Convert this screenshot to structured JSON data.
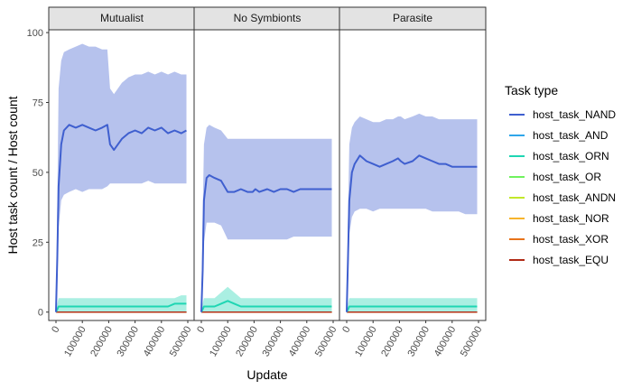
{
  "chart_data": {
    "type": "line",
    "xlabel": "Update",
    "ylabel": "Host task count / Host count",
    "xlim": [
      0,
      500000
    ],
    "ylim": [
      -3,
      101
    ],
    "x_ticks": [
      0,
      100000,
      200000,
      300000,
      400000,
      500000
    ],
    "x_tick_labels": [
      "0",
      "100000",
      "200000",
      "300000",
      "400000",
      "500000"
    ],
    "y_ticks": [
      0,
      25,
      50,
      75,
      100
    ],
    "y_tick_labels": [
      "0",
      "25",
      "50",
      "75",
      "100"
    ],
    "grid": false,
    "legend": {
      "title": "Task type",
      "placement": "right",
      "entries": [
        {
          "name": "host_task_NAND",
          "color": "#3f5fcf"
        },
        {
          "name": "host_task_AND",
          "color": "#2fa6ea"
        },
        {
          "name": "host_task_ORN",
          "color": "#1fd6b3"
        },
        {
          "name": "host_task_OR",
          "color": "#6ff25e"
        },
        {
          "name": "host_task_ANDN",
          "color": "#c2e82a"
        },
        {
          "name": "host_task_NOR",
          "color": "#f7b42c"
        },
        {
          "name": "host_task_XOR",
          "color": "#e8731a"
        },
        {
          "name": "host_task_EQU",
          "color": "#b02a15"
        }
      ]
    },
    "x": [
      0,
      5000,
      10000,
      20000,
      30000,
      50000,
      75000,
      100000,
      125000,
      150000,
      175000,
      195000,
      205000,
      220000,
      250000,
      275000,
      300000,
      325000,
      350000,
      375000,
      400000,
      425000,
      450000,
      475000,
      495000
    ],
    "panels": [
      {
        "strip": "Mutualist",
        "series": [
          {
            "name": "host_task_NAND",
            "values": [
              0,
              20,
              45,
              60,
              65,
              67,
              66,
              67,
              66,
              65,
              66,
              67,
              60,
              58,
              62,
              64,
              65,
              64,
              66,
              65,
              66,
              64,
              65,
              64,
              65
            ],
            "lower": [
              0,
              10,
              30,
              40,
              42,
              43,
              44,
              43,
              44,
              44,
              44,
              45,
              46,
              46,
              46,
              46,
              46,
              46,
              47,
              46,
              46,
              46,
              46,
              46,
              46
            ],
            "upper": [
              0,
              40,
              80,
              90,
              93,
              94,
              95,
              96,
              95,
              95,
              94,
              94,
              80,
              78,
              82,
              84,
              85,
              85,
              86,
              85,
              86,
              85,
              86,
              85,
              85
            ]
          },
          {
            "name": "host_task_ORN",
            "values": [
              0,
              1,
              2,
              2,
              2,
              2,
              2,
              2,
              2,
              2,
              2,
              2,
              2,
              2,
              2,
              2,
              2,
              2,
              2,
              2,
              2,
              2,
              3,
              3,
              3
            ],
            "lower": [
              0,
              0,
              0,
              0,
              0,
              0,
              0,
              0,
              0,
              0,
              0,
              0,
              0,
              0,
              0,
              0,
              0,
              0,
              0,
              0,
              0,
              0,
              0,
              0,
              0
            ],
            "upper": [
              0,
              3,
              5,
              5,
              5,
              5,
              5,
              5,
              5,
              5,
              5,
              5,
              5,
              5,
              5,
              5,
              5,
              5,
              5,
              5,
              5,
              5,
              5,
              6,
              6
            ]
          }
        ]
      },
      {
        "strip": "No Symbionts",
        "series": [
          {
            "name": "host_task_NAND",
            "values": [
              0,
              15,
              40,
              48,
              49,
              48,
              47,
              43,
              43,
              44,
              43,
              43,
              44,
              43,
              44,
              43,
              44,
              44,
              43,
              44,
              44,
              44,
              44,
              44,
              44
            ],
            "lower": [
              0,
              8,
              25,
              32,
              32,
              32,
              31,
              26,
              26,
              26,
              26,
              26,
              26,
              26,
              26,
              26,
              26,
              26,
              27,
              27,
              27,
              27,
              27,
              27,
              27
            ],
            "upper": [
              0,
              35,
              60,
              66,
              67,
              66,
              65,
              62,
              62,
              62,
              62,
              62,
              62,
              62,
              62,
              62,
              62,
              62,
              62,
              62,
              62,
              62,
              62,
              62,
              62
            ]
          },
          {
            "name": "host_task_ORN",
            "values": [
              0,
              1,
              2,
              2,
              2,
              2,
              3,
              4,
              3,
              2,
              2,
              2,
              2,
              2,
              2,
              2,
              2,
              2,
              2,
              2,
              2,
              2,
              2,
              2,
              2
            ],
            "lower": [
              0,
              0,
              0,
              0,
              0,
              0,
              0,
              0,
              0,
              0,
              0,
              0,
              0,
              0,
              0,
              0,
              0,
              0,
              0,
              0,
              0,
              0,
              0,
              0,
              0
            ],
            "upper": [
              0,
              3,
              5,
              5,
              5,
              5,
              7,
              9,
              7,
              5,
              5,
              5,
              5,
              5,
              5,
              5,
              5,
              5,
              5,
              5,
              5,
              5,
              5,
              5,
              5
            ]
          }
        ]
      },
      {
        "strip": "Parasite",
        "series": [
          {
            "name": "host_task_NAND",
            "values": [
              0,
              20,
              40,
              50,
              53,
              56,
              54,
              53,
              52,
              53,
              54,
              55,
              54,
              53,
              54,
              56,
              55,
              54,
              53,
              53,
              52,
              52,
              52,
              52,
              52
            ],
            "lower": [
              0,
              10,
              28,
              34,
              36,
              37,
              37,
              36,
              37,
              37,
              37,
              37,
              37,
              37,
              37,
              37,
              37,
              36,
              36,
              36,
              36,
              36,
              35,
              35,
              35
            ],
            "upper": [
              0,
              35,
              60,
              66,
              68,
              70,
              69,
              68,
              68,
              69,
              69,
              70,
              70,
              69,
              70,
              71,
              70,
              70,
              69,
              69,
              69,
              69,
              69,
              69,
              69
            ]
          },
          {
            "name": "host_task_ORN",
            "values": [
              0,
              1,
              2,
              2,
              2,
              2,
              2,
              2,
              2,
              2,
              2,
              2,
              2,
              2,
              2,
              2,
              2,
              2,
              2,
              2,
              2,
              2,
              2,
              2,
              2
            ],
            "lower": [
              0,
              0,
              0,
              0,
              0,
              0,
              0,
              0,
              0,
              0,
              0,
              0,
              0,
              0,
              0,
              0,
              0,
              0,
              0,
              0,
              0,
              0,
              0,
              0,
              0
            ],
            "upper": [
              0,
              3,
              5,
              5,
              5,
              5,
              5,
              5,
              5,
              5,
              5,
              5,
              5,
              5,
              5,
              5,
              5,
              5,
              5,
              5,
              5,
              5,
              5,
              5,
              5
            ]
          }
        ]
      }
    ]
  }
}
